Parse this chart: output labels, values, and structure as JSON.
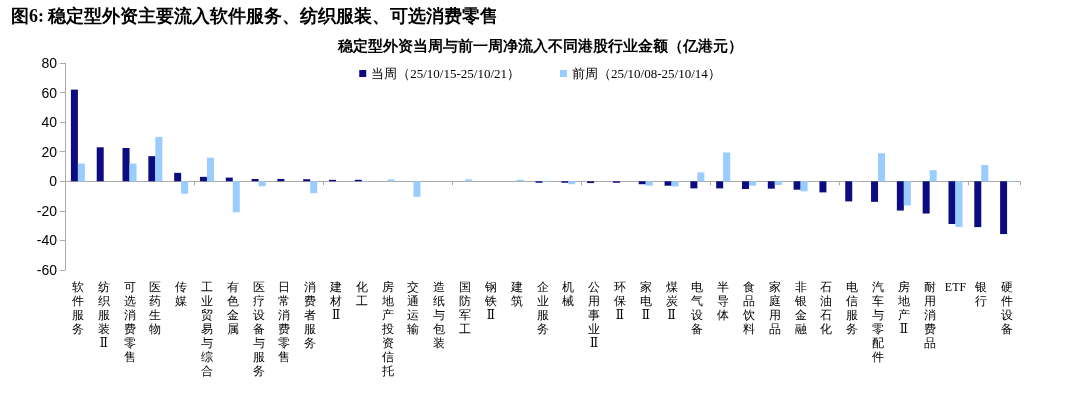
{
  "chart_data": {
    "type": "bar",
    "title": "图6: 稳定型外资主要流入软件服务、纺织服装、可选消费零售",
    "subtitle": "稳定型外资当周与前一周净流入不同港股行业金额（亿港元）",
    "categories": [
      "软件服务",
      "纺织服装Ⅱ",
      "可选消费零售",
      "医药生物",
      "传媒",
      "工业贸易与综合",
      "有色金属",
      "医疗设备与服务",
      "日常消费零售",
      "消费者服务",
      "建材Ⅱ",
      "化工",
      "房地产投资信托",
      "交通运输",
      "造纸与包装",
      "国防军工",
      "钢铁Ⅱ",
      "建筑",
      "企业服务",
      "机械",
      "公用事业Ⅱ",
      "环保Ⅱ",
      "家电Ⅱ",
      "煤炭Ⅱ",
      "电气设备",
      "半导体",
      "食品饮料",
      "家庭用品",
      "非银金融",
      "石油石化",
      "电信服务",
      "汽车与零配件",
      "房地产Ⅱ",
      "耐用消费品",
      "ETF",
      "银行",
      "硬件设备"
    ],
    "series": [
      {
        "name": "当周（25/10/15-25/10/21）",
        "color": "#0c0c80",
        "values": [
          62,
          23,
          22.5,
          17,
          5.7,
          3,
          2.5,
          1.6,
          1.6,
          1.4,
          1,
          1,
          0,
          0,
          0,
          0,
          0,
          null,
          -1,
          -1,
          -1.2,
          -1,
          -2,
          -3,
          -4.8,
          -4.8,
          -5.2,
          -5,
          -5.7,
          -7.5,
          -13.6,
          -13.9,
          -19.8,
          -21.8,
          -28.9,
          -31,
          -35.7
        ]
      },
      {
        "name": "前周（25/10/08-25/10/14）",
        "color": "#99ccff",
        "values": [
          12,
          0,
          12,
          30,
          -8.4,
          16,
          -21,
          -3.4,
          0,
          -8,
          null,
          -0.5,
          1.2,
          -10.5,
          0,
          1.3,
          0,
          1,
          -0.5,
          -2,
          0,
          0,
          -3,
          -3.5,
          6,
          19.5,
          -3,
          -2.5,
          -6.8,
          0,
          -0.5,
          19,
          -16.4,
          7.5,
          -30.9,
          11,
          -0.5
        ]
      }
    ],
    "ylim": [
      -60,
      80
    ],
    "yticks": [
      -60,
      -40,
      -20,
      0,
      20,
      40,
      60,
      80
    ],
    "legend": "top"
  }
}
